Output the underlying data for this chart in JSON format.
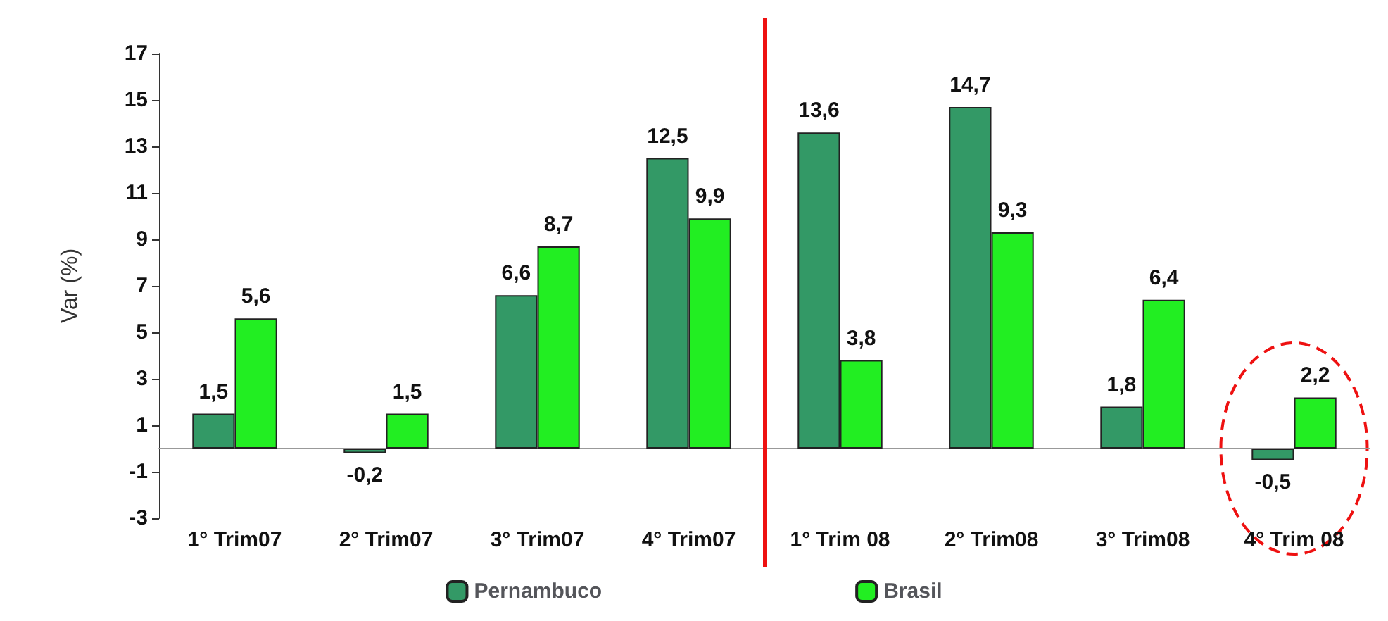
{
  "chart_data": {
    "type": "bar",
    "ylabel": "Var (%)",
    "categories": [
      "1° Trim07",
      "2° Trim07",
      "3° Trim07",
      "4° Trim07",
      "1° Trim 08",
      "2° Trim08",
      "3° Trim08",
      "4° Trim 08"
    ],
    "series": [
      {
        "name": "Pernambuco",
        "color": "#339966",
        "values": [
          1.5,
          -0.2,
          6.6,
          12.5,
          13.6,
          14.7,
          1.8,
          -0.5
        ],
        "value_labels": [
          "1,5",
          "-0,2",
          "6,6",
          "12,5",
          "13,6",
          "14,7",
          "1,8",
          "-0,5"
        ]
      },
      {
        "name": "Brasil",
        "color": "#22ee22",
        "values": [
          5.6,
          1.5,
          8.7,
          9.9,
          3.8,
          9.3,
          6.4,
          2.2
        ],
        "value_labels": [
          "5,6",
          "1,5",
          "8,7",
          "9,9",
          "3,8",
          "9,3",
          "6,4",
          "2,2"
        ]
      }
    ],
    "ylim": [
      -3,
      17
    ],
    "yticks": [
      -3,
      -1,
      1,
      3,
      5,
      7,
      9,
      11,
      13,
      15,
      17
    ],
    "grid": false,
    "legend": "bottom"
  }
}
